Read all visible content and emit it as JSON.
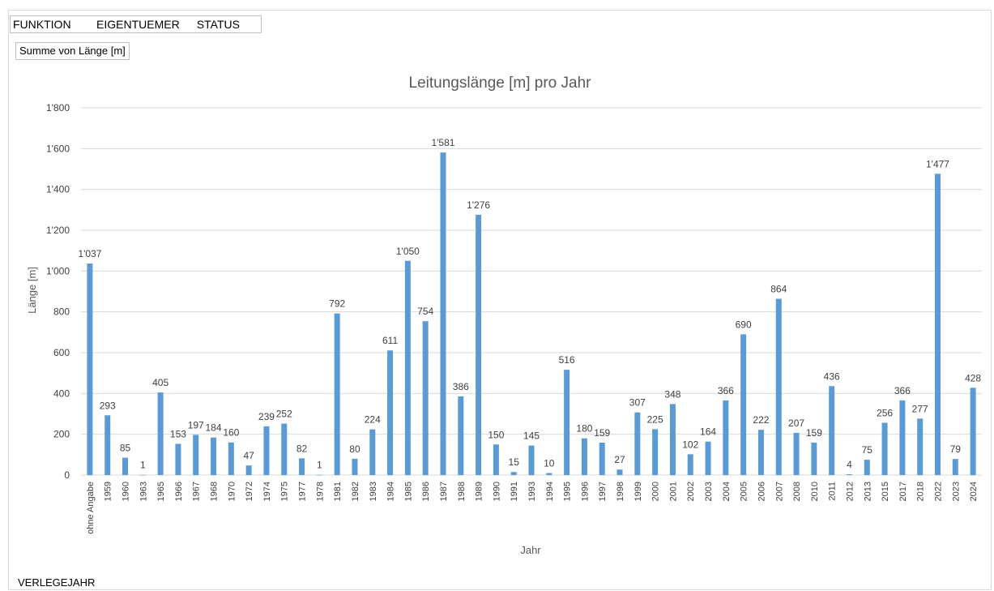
{
  "filters": {
    "fields": [
      "FUNKTION",
      "EIGENTUEMER",
      "STATUS"
    ],
    "value_field": "Summe von Länge [m]",
    "axis_field": "VERLEGEJAHR"
  },
  "colors": {
    "bar": "#5b9bd5",
    "grid": "#d9d9d9",
    "text": "#404040"
  },
  "chart_data": {
    "type": "bar",
    "title": "Leitungslänge [m] pro Jahr",
    "xlabel": "Jahr",
    "ylabel": "Länge [m]",
    "ylim": [
      0,
      1800
    ],
    "ytick_values": [
      0,
      200,
      400,
      600,
      800,
      1000,
      1200,
      1400,
      1600,
      1800
    ],
    "ytick_labels": [
      "0",
      "200",
      "400",
      "600",
      "800",
      "1'000",
      "1'200",
      "1'400",
      "1'600",
      "1'800"
    ],
    "grid": true,
    "legend": "none",
    "categories": [
      "ohne Angabe",
      "1959",
      "1960",
      "1963",
      "1965",
      "1966",
      "1967",
      "1968",
      "1970",
      "1972",
      "1974",
      "1975",
      "1977",
      "1978",
      "1981",
      "1982",
      "1983",
      "1984",
      "1985",
      "1986",
      "1987",
      "1988",
      "1989",
      "1990",
      "1991",
      "1993",
      "1994",
      "1995",
      "1996",
      "1997",
      "1998",
      "1999",
      "2000",
      "2001",
      "2002",
      "2003",
      "2004",
      "2005",
      "2006",
      "2007",
      "2008",
      "2010",
      "2011",
      "2012",
      "2013",
      "2015",
      "2017",
      "2018",
      "2022",
      "2023",
      "2024"
    ],
    "values": [
      1037,
      293,
      85,
      1,
      405,
      153,
      197,
      184,
      160,
      47,
      239,
      252,
      82,
      1,
      792,
      80,
      224,
      611,
      1050,
      754,
      1581,
      386,
      1276,
      150,
      15,
      145,
      10,
      516,
      180,
      159,
      27,
      307,
      225,
      348,
      102,
      164,
      366,
      690,
      222,
      864,
      207,
      159,
      436,
      4,
      75,
      256,
      366,
      277,
      1477,
      79,
      428
    ],
    "data_labels": [
      "1'037",
      "293",
      "85",
      "1",
      "405",
      "153",
      "197",
      "184",
      "160",
      "47",
      "239",
      "252",
      "82",
      "1",
      "792",
      "80",
      "224",
      "611",
      "1'050",
      "754",
      "1'581",
      "386",
      "1'276",
      "150",
      "15",
      "145",
      "10",
      "516",
      "180",
      "159",
      "27",
      "307",
      "225",
      "348",
      "102",
      "164",
      "366",
      "690",
      "222",
      "864",
      "207",
      "159",
      "436",
      "4",
      "75",
      "256",
      "366",
      "277",
      "1'477",
      "79",
      "428"
    ]
  }
}
